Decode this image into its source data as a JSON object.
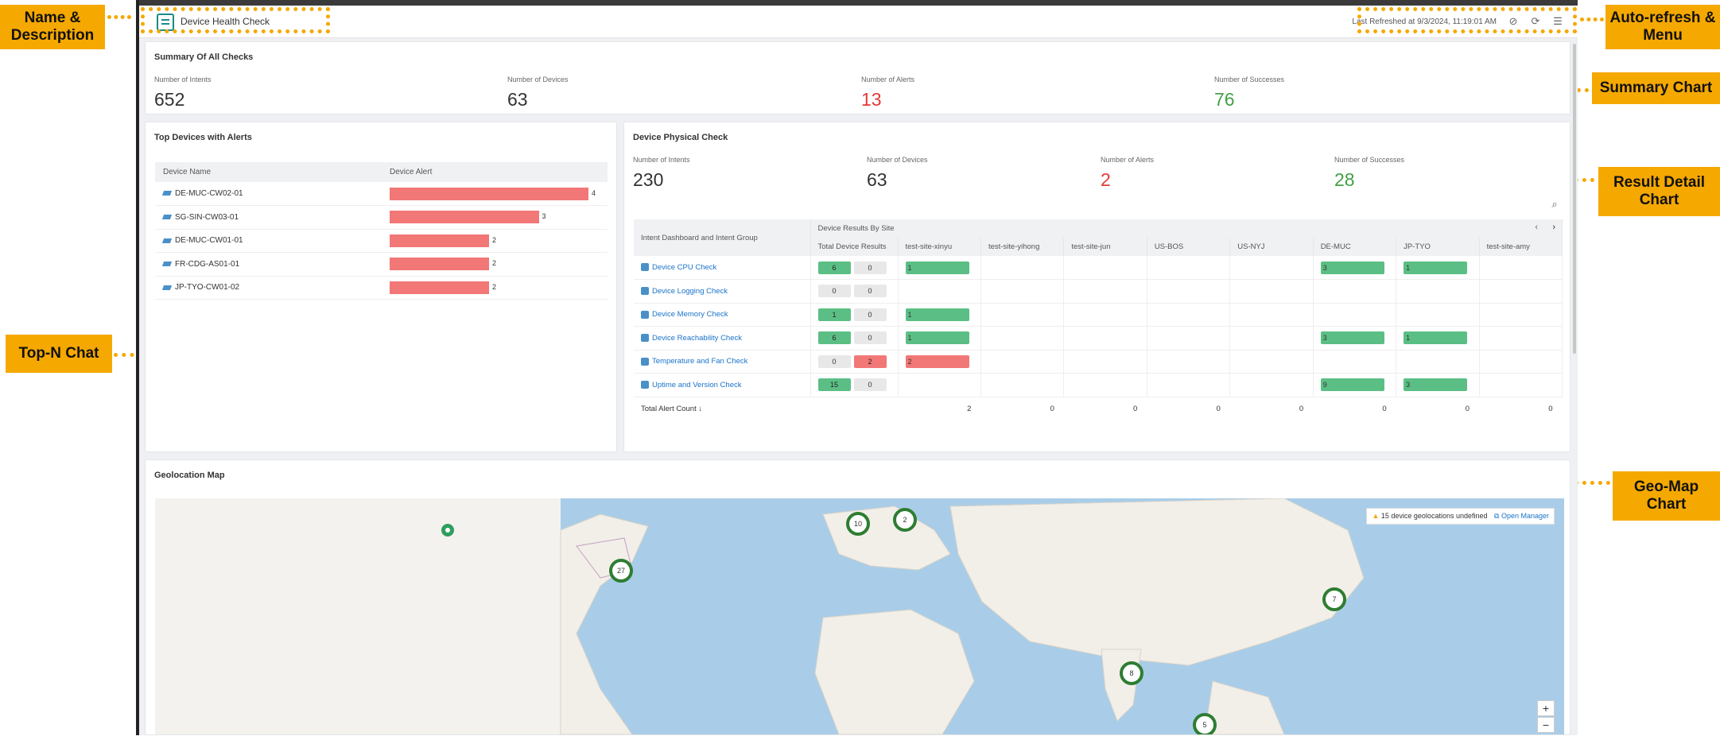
{
  "callouts": {
    "name_desc": "Name & Description",
    "autorefresh": "Auto-refresh & Menu",
    "summary": "Summary Chart",
    "result": "Result Detail Chart",
    "topn": "Top-N Chat",
    "geomap": "Geo-Map Chart"
  },
  "header": {
    "title": "Device Health Check",
    "last_refreshed": "Last Refreshed at 9/3/2024, 11:19:01 AM",
    "icons": [
      "refresh-off-icon",
      "auto-refresh-icon",
      "menu-icon"
    ]
  },
  "summary": {
    "title": "Summary Of All Checks",
    "stats": [
      {
        "label": "Number of Intents",
        "value": "652",
        "color": "#333333"
      },
      {
        "label": "Number of Devices",
        "value": "63",
        "color": "#333333"
      },
      {
        "label": "Number of Alerts",
        "value": "13",
        "color": "#e53935"
      },
      {
        "label": "Number of Successes",
        "value": "76",
        "color": "#43a047"
      }
    ]
  },
  "topn": {
    "title": "Top Devices with Alerts",
    "col_device": "Device Name",
    "col_alert": "Device Alert",
    "max": 4,
    "rows": [
      {
        "name": "DE-MUC-CW02-01",
        "alerts": 4
      },
      {
        "name": "SG-SIN-CW03-01",
        "alerts": 3
      },
      {
        "name": "DE-MUC-CW01-01",
        "alerts": 2
      },
      {
        "name": "FR-CDG-AS01-01",
        "alerts": 2
      },
      {
        "name": "JP-TYO-CW01-02",
        "alerts": 2
      }
    ]
  },
  "physical": {
    "title": "Device Physical Check",
    "stats": [
      {
        "label": "Number of Intents",
        "value": "230",
        "color": "#333333"
      },
      {
        "label": "Number of Devices",
        "value": "63",
        "color": "#333333"
      },
      {
        "label": "Number of Alerts",
        "value": "2",
        "color": "#e53935"
      },
      {
        "label": "Number of Successes",
        "value": "28",
        "color": "#43a047"
      }
    ],
    "col_group": "Intent Dashboard and Intent Group",
    "col_results_by_site": "Device Results By Site",
    "col_total": "Total Device Results",
    "sites": [
      "test-site-xinyu",
      "test-site-yihong",
      "test-site-jun",
      "US-BOS",
      "US-NYJ",
      "DE-MUC",
      "JP-TYO",
      "test-site-amy"
    ],
    "rows": [
      {
        "name": "Device CPU Check",
        "ok": "6",
        "alert": "0",
        "sites": [
          {
            "v": "1",
            "c": "g"
          },
          null,
          null,
          null,
          null,
          {
            "v": "3",
            "c": "g"
          },
          {
            "v": "1",
            "c": "g"
          },
          null
        ]
      },
      {
        "name": "Device Logging Check",
        "ok": "0",
        "alert": "0",
        "sites": [
          null,
          null,
          null,
          null,
          null,
          null,
          null,
          null
        ]
      },
      {
        "name": "Device Memory Check",
        "ok": "1",
        "alert": "0",
        "sites": [
          {
            "v": "1",
            "c": "g"
          },
          null,
          null,
          null,
          null,
          null,
          null,
          null
        ]
      },
      {
        "name": "Device Reachability Check",
        "ok": "6",
        "alert": "0",
        "sites": [
          {
            "v": "1",
            "c": "g"
          },
          null,
          null,
          null,
          null,
          {
            "v": "3",
            "c": "g"
          },
          {
            "v": "1",
            "c": "g"
          },
          null
        ]
      },
      {
        "name": "Temperature and Fan Check",
        "ok": "0",
        "alert": "2",
        "sites": [
          {
            "v": "2",
            "c": "r"
          },
          null,
          null,
          null,
          null,
          null,
          null,
          null
        ]
      },
      {
        "name": "Uptime and Version Check",
        "ok": "15",
        "alert": "0",
        "sites": [
          null,
          null,
          null,
          null,
          null,
          {
            "v": "9",
            "c": "g"
          },
          {
            "v": "3",
            "c": "g"
          },
          null
        ]
      }
    ],
    "total_label": "Total Alert Count ↓",
    "totals": [
      "2",
      "0",
      "0",
      "0",
      "0",
      "0",
      "0",
      "0"
    ]
  },
  "geo": {
    "title": "Geolocation Map",
    "undefined_msg": "15 device geolocations undefined",
    "open_manager": "Open Manager",
    "clusters": [
      "10",
      "2",
      "27",
      "7",
      "8",
      "5"
    ],
    "zoom_in": "+",
    "zoom_out": "−"
  }
}
